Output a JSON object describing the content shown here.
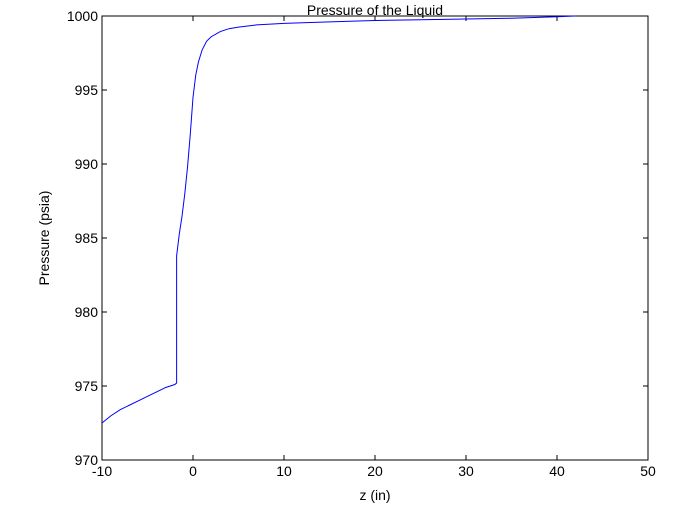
{
  "chart_data": {
    "type": "line",
    "title": "Pressure of the Liquid",
    "xlabel": "z (in)",
    "ylabel": "Pressure (psia)",
    "xlim": [
      -10,
      50
    ],
    "ylim": [
      970,
      1000
    ],
    "xticks": [
      -10,
      0,
      10,
      20,
      30,
      40,
      50
    ],
    "yticks": [
      970,
      975,
      980,
      985,
      990,
      995,
      1000
    ],
    "xtick_labels": [
      "-10",
      "0",
      "10",
      "20",
      "30",
      "40",
      "50"
    ],
    "ytick_labels": [
      "970",
      "975",
      "980",
      "985",
      "990",
      "995",
      "1000"
    ],
    "grid": false,
    "series": [
      {
        "color": "#0000ff",
        "x": [
          -10,
          -9,
          -8,
          -7,
          -6,
          -5,
          -4,
          -3,
          -2,
          -1.8,
          -1.8,
          -1.5,
          -1.2,
          -0.9,
          -0.6,
          -0.3,
          0,
          0.3,
          0.6,
          1,
          1.5,
          2,
          3,
          4,
          5,
          7,
          10,
          15,
          20,
          25,
          30,
          35,
          40,
          42
        ],
        "y": [
          972.5,
          973.0,
          973.4,
          973.7,
          974.0,
          974.3,
          974.6,
          974.9,
          975.1,
          975.2,
          983.8,
          985.3,
          986.5,
          988.0,
          989.8,
          992.0,
          994.5,
          996.0,
          996.9,
          997.7,
          998.3,
          998.6,
          998.95,
          999.15,
          999.25,
          999.4,
          999.5,
          999.6,
          999.7,
          999.75,
          999.8,
          999.85,
          999.95,
          1000.0
        ]
      }
    ]
  }
}
